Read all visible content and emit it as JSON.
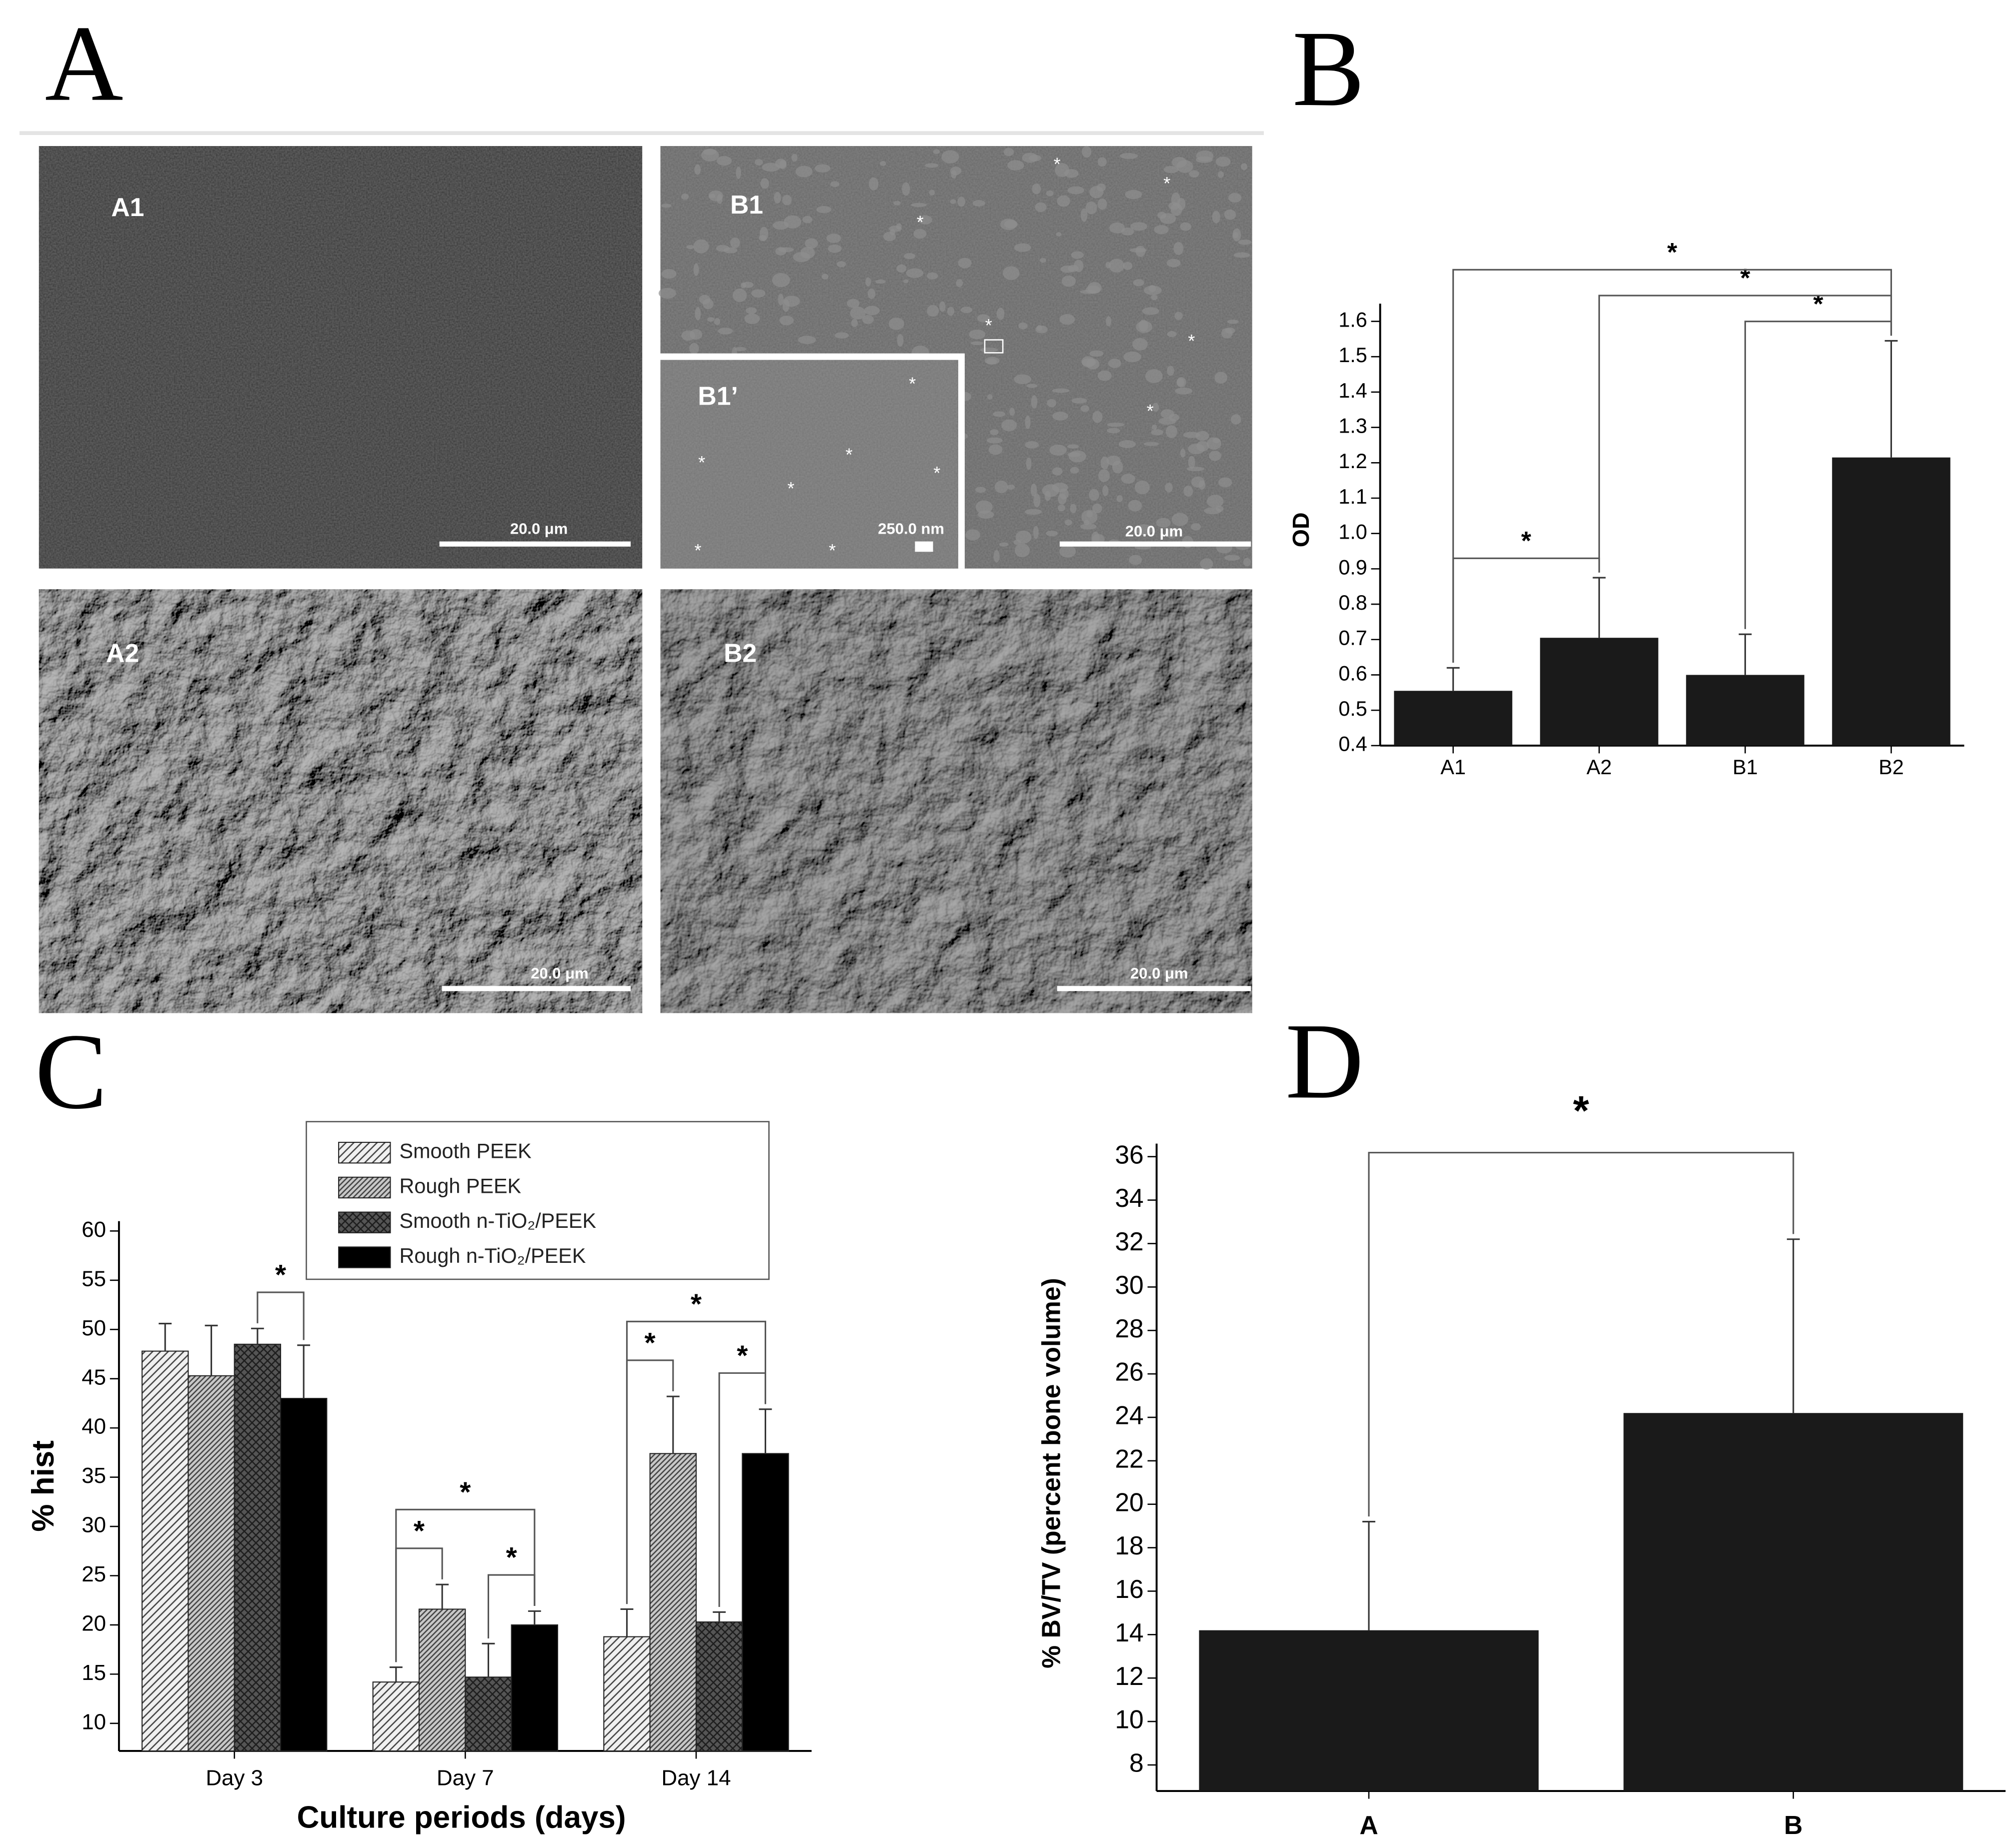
{
  "panel_labels": [
    "A",
    "B",
    "C",
    "D"
  ],
  "sem_images": [
    {
      "label": "A1",
      "scale_bar": "20.0 μm"
    },
    {
      "label": "B1",
      "scale_bar": "20.0 μm",
      "marker": "*"
    },
    {
      "label": "B1’",
      "scale_bar": "250.0 nm",
      "marker": "*"
    },
    {
      "label": "A2",
      "scale_bar": "20.0 μm"
    },
    {
      "label": "B2",
      "scale_bar": "20.0 μm"
    }
  ],
  "chart_data": [
    {
      "type": "bar",
      "ylabel": "OD",
      "categories": [
        "A1",
        "A2",
        "B1",
        "B2"
      ],
      "values": [
        0.555,
        0.705,
        0.6,
        1.215
      ],
      "errors": [
        0.065,
        0.17,
        0.115,
        0.33
      ],
      "color": "#1a1a1a",
      "ylim": [
        0.4,
        1.65
      ],
      "yticks": [
        0.4,
        0.5,
        0.6,
        0.7,
        0.8,
        0.9,
        {
          "value": 1,
          "label": "1.0"
        },
        1.1,
        1.2,
        1.3,
        1.4,
        1.5,
        1.6
      ],
      "significance": [
        {
          "from": 0,
          "to": 1,
          "label": "*"
        },
        {
          "from": 2,
          "to": 3,
          "label": "*"
        },
        {
          "from": 1,
          "to": 3,
          "label": "*"
        },
        {
          "from": 0,
          "to": 3,
          "label": "*"
        }
      ]
    },
    {
      "type": "grouped-bar",
      "xlabel": "Culture periods (days)",
      "ylabel": "% hist",
      "categories": [
        "Day 3",
        "Day 7",
        "Day 14"
      ],
      "series": [
        {
          "name": "Smooth PEEK",
          "color": "#f0f0f0",
          "pattern": "diagonal",
          "values": [
            47.8,
            14.2,
            18.8
          ],
          "errors": [
            2.8,
            1.5,
            2.8
          ]
        },
        {
          "name": "Rough PEEK",
          "color": "#c8c8c8",
          "pattern": "dense-diagonal",
          "values": [
            45.3,
            21.6,
            37.4
          ],
          "errors": [
            5.1,
            2.5,
            5.8
          ]
        },
        {
          "name": "Smooth n-TiO₂/PEEK",
          "color": "#555555",
          "pattern": "cross",
          "values": [
            48.5,
            14.7,
            20.3
          ],
          "errors": [
            1.6,
            3.4,
            1.0
          ]
        },
        {
          "name": "Rough n-TiO₂/PEEK",
          "color": "#000000",
          "pattern": "solid",
          "values": [
            43,
            20,
            37.4
          ],
          "errors": [
            5.4,
            1.4,
            4.5
          ]
        }
      ],
      "ylim": [
        7.2,
        61
      ],
      "yticks": [
        10,
        15,
        20,
        25,
        30,
        35,
        40,
        45,
        50,
        55,
        60
      ],
      "legend": "top",
      "significance": [
        {
          "group": 0,
          "from": 2,
          "to": 3,
          "label": "*"
        },
        {
          "group": 1,
          "from": 0,
          "to": 1,
          "label": "*"
        },
        {
          "group": 1,
          "from": 2,
          "to": 3,
          "label": "*"
        },
        {
          "group": 1,
          "from": 0,
          "to": 3,
          "label": "*"
        },
        {
          "group": 2,
          "from": 0,
          "to": 1,
          "label": "*"
        },
        {
          "group": 2,
          "from": 2,
          "to": 3,
          "label": "*"
        },
        {
          "group": 2,
          "from": 0,
          "to": 3,
          "label": "*"
        }
      ]
    },
    {
      "type": "bar",
      "ylabel": "% BV/TV (percent bone volume)",
      "categories": [
        "A",
        "B"
      ],
      "values": [
        14.2,
        24.2
      ],
      "errors": [
        5,
        8
      ],
      "color": "#1a1a1a",
      "ylim": [
        6.8,
        36.6
      ],
      "yticks": [
        8,
        10,
        12,
        14,
        16,
        18,
        20,
        22,
        24,
        26,
        28,
        30,
        32,
        34,
        36
      ],
      "significance": [
        {
          "from": 0,
          "to": 1,
          "label": "*"
        }
      ]
    }
  ]
}
